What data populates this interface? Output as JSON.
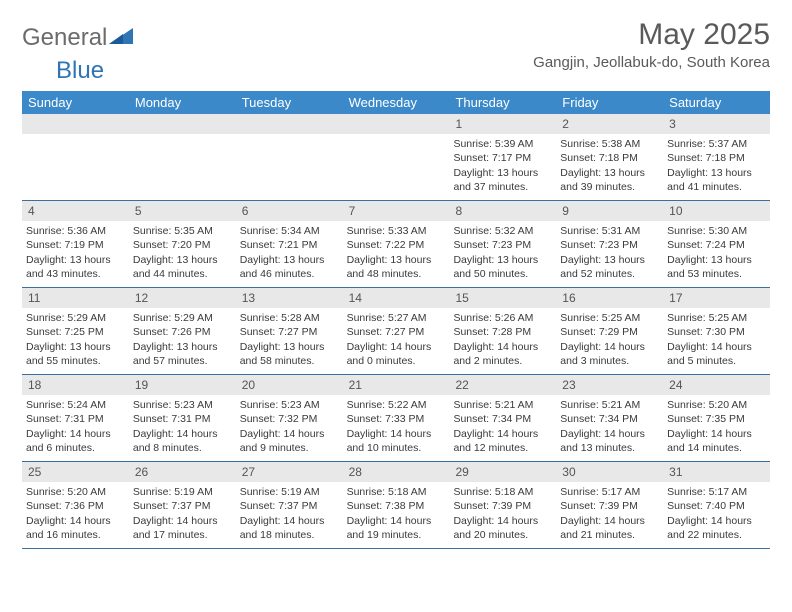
{
  "logo": {
    "textA": "General",
    "textB": "Blue"
  },
  "title": "May 2025",
  "location": "Gangjin, Jeollabuk-do, South Korea",
  "colors": {
    "headerBar": "#3b89c9",
    "headerText": "#ffffff",
    "rowDivider": "#3b6fa0",
    "dayBar": "#e8e8e8",
    "bodyText": "#3a3a3a",
    "titleText": "#5a5a5a",
    "logoGray": "#6b6b6b",
    "logoBlue": "#2f74b5"
  },
  "daysOfWeek": [
    "Sunday",
    "Monday",
    "Tuesday",
    "Wednesday",
    "Thursday",
    "Friday",
    "Saturday"
  ],
  "startOffset": 4,
  "days": [
    {
      "n": 1,
      "sr": "5:39 AM",
      "ss": "7:17 PM",
      "dl": "13 hours and 37 minutes."
    },
    {
      "n": 2,
      "sr": "5:38 AM",
      "ss": "7:18 PM",
      "dl": "13 hours and 39 minutes."
    },
    {
      "n": 3,
      "sr": "5:37 AM",
      "ss": "7:18 PM",
      "dl": "13 hours and 41 minutes."
    },
    {
      "n": 4,
      "sr": "5:36 AM",
      "ss": "7:19 PM",
      "dl": "13 hours and 43 minutes."
    },
    {
      "n": 5,
      "sr": "5:35 AM",
      "ss": "7:20 PM",
      "dl": "13 hours and 44 minutes."
    },
    {
      "n": 6,
      "sr": "5:34 AM",
      "ss": "7:21 PM",
      "dl": "13 hours and 46 minutes."
    },
    {
      "n": 7,
      "sr": "5:33 AM",
      "ss": "7:22 PM",
      "dl": "13 hours and 48 minutes."
    },
    {
      "n": 8,
      "sr": "5:32 AM",
      "ss": "7:23 PM",
      "dl": "13 hours and 50 minutes."
    },
    {
      "n": 9,
      "sr": "5:31 AM",
      "ss": "7:23 PM",
      "dl": "13 hours and 52 minutes."
    },
    {
      "n": 10,
      "sr": "5:30 AM",
      "ss": "7:24 PM",
      "dl": "13 hours and 53 minutes."
    },
    {
      "n": 11,
      "sr": "5:29 AM",
      "ss": "7:25 PM",
      "dl": "13 hours and 55 minutes."
    },
    {
      "n": 12,
      "sr": "5:29 AM",
      "ss": "7:26 PM",
      "dl": "13 hours and 57 minutes."
    },
    {
      "n": 13,
      "sr": "5:28 AM",
      "ss": "7:27 PM",
      "dl": "13 hours and 58 minutes."
    },
    {
      "n": 14,
      "sr": "5:27 AM",
      "ss": "7:27 PM",
      "dl": "14 hours and 0 minutes."
    },
    {
      "n": 15,
      "sr": "5:26 AM",
      "ss": "7:28 PM",
      "dl": "14 hours and 2 minutes."
    },
    {
      "n": 16,
      "sr": "5:25 AM",
      "ss": "7:29 PM",
      "dl": "14 hours and 3 minutes."
    },
    {
      "n": 17,
      "sr": "5:25 AM",
      "ss": "7:30 PM",
      "dl": "14 hours and 5 minutes."
    },
    {
      "n": 18,
      "sr": "5:24 AM",
      "ss": "7:31 PM",
      "dl": "14 hours and 6 minutes."
    },
    {
      "n": 19,
      "sr": "5:23 AM",
      "ss": "7:31 PM",
      "dl": "14 hours and 8 minutes."
    },
    {
      "n": 20,
      "sr": "5:23 AM",
      "ss": "7:32 PM",
      "dl": "14 hours and 9 minutes."
    },
    {
      "n": 21,
      "sr": "5:22 AM",
      "ss": "7:33 PM",
      "dl": "14 hours and 10 minutes."
    },
    {
      "n": 22,
      "sr": "5:21 AM",
      "ss": "7:34 PM",
      "dl": "14 hours and 12 minutes."
    },
    {
      "n": 23,
      "sr": "5:21 AM",
      "ss": "7:34 PM",
      "dl": "14 hours and 13 minutes."
    },
    {
      "n": 24,
      "sr": "5:20 AM",
      "ss": "7:35 PM",
      "dl": "14 hours and 14 minutes."
    },
    {
      "n": 25,
      "sr": "5:20 AM",
      "ss": "7:36 PM",
      "dl": "14 hours and 16 minutes."
    },
    {
      "n": 26,
      "sr": "5:19 AM",
      "ss": "7:37 PM",
      "dl": "14 hours and 17 minutes."
    },
    {
      "n": 27,
      "sr": "5:19 AM",
      "ss": "7:37 PM",
      "dl": "14 hours and 18 minutes."
    },
    {
      "n": 28,
      "sr": "5:18 AM",
      "ss": "7:38 PM",
      "dl": "14 hours and 19 minutes."
    },
    {
      "n": 29,
      "sr": "5:18 AM",
      "ss": "7:39 PM",
      "dl": "14 hours and 20 minutes."
    },
    {
      "n": 30,
      "sr": "5:17 AM",
      "ss": "7:39 PM",
      "dl": "14 hours and 21 minutes."
    },
    {
      "n": 31,
      "sr": "5:17 AM",
      "ss": "7:40 PM",
      "dl": "14 hours and 22 minutes."
    }
  ],
  "labels": {
    "sunrise": "Sunrise:",
    "sunset": "Sunset:",
    "daylight": "Daylight:"
  }
}
